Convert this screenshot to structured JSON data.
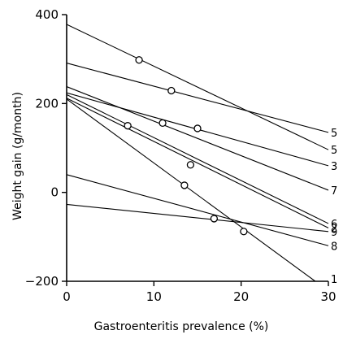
{
  "chart_data": {
    "type": "line",
    "title": "",
    "xlabel": "Gastroenteritis prevalence (%)",
    "ylabel": "Weight gain (g/month)",
    "xlim": [
      0,
      30
    ],
    "ylim": [
      -200,
      400
    ],
    "x_ticks": [
      "0",
      "10",
      "20",
      "30"
    ],
    "y_ticks": [
      "−200",
      "0",
      "200",
      "400"
    ],
    "y_tick_values": [
      -200,
      0,
      200,
      400
    ],
    "x_tick_values": [
      0,
      10,
      20,
      30
    ],
    "grid": false,
    "legend": "none",
    "series": [
      {
        "name": "5",
        "x": [
          0,
          30
        ],
        "y": [
          291,
          135
        ],
        "marker": [
          12,
          229
        ]
      },
      {
        "name": "5",
        "x": [
          0,
          30
        ],
        "y": [
          378,
          96
        ],
        "marker": [
          8.3,
          298
        ]
      },
      {
        "name": "3",
        "x": [
          0,
          30
        ],
        "y": [
          224,
          60
        ],
        "marker": [
          15,
          144
        ]
      },
      {
        "name": "7",
        "x": [
          0,
          30
        ],
        "y": [
          238,
          5
        ],
        "marker": [
          11,
          156
        ]
      },
      {
        "name": "6",
        "x": [
          0,
          30
        ],
        "y": [
          220,
          -70
        ],
        "marker": [
          14.2,
          62
        ]
      },
      {
        "name": "2",
        "x": [
          0,
          30
        ],
        "y": [
          212,
          -80
        ],
        "marker": [
          7,
          150
        ]
      },
      {
        "name": "9",
        "x": [
          0,
          30
        ],
        "y": [
          -27,
          -88
        ],
        "marker": [
          20.3,
          -88
        ]
      },
      {
        "name": "8",
        "x": [
          0,
          30
        ],
        "y": [
          40,
          -120
        ],
        "marker": [
          16.9,
          -59
        ]
      },
      {
        "name": "1",
        "x": [
          0,
          28.5
        ],
        "y": [
          210,
          -200
        ],
        "marker": [
          13.5,
          16
        ]
      }
    ]
  }
}
